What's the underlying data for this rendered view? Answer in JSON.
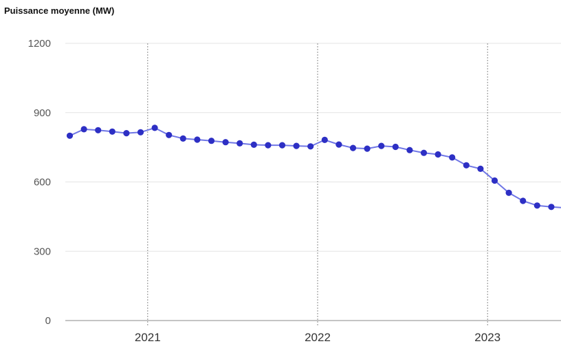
{
  "chart_data": {
    "type": "line",
    "title": "Puissance moyenne (MW)",
    "xlabel": "",
    "ylabel": "",
    "ylim": [
      0,
      1200
    ],
    "yticks": [
      "0",
      "300",
      "600",
      "900",
      "1200"
    ],
    "xticks": [
      "2021",
      "2022",
      "2023"
    ],
    "grid": "horizontal-solid, vertical-dotted-at-years",
    "colors": {
      "series": "#2d2fc4",
      "line": "#6f76e6",
      "grid": "#e3e3e3",
      "year_grid": "#8a8a8a"
    },
    "series": [
      {
        "x": [
          "2020-07",
          "2020-08",
          "2020-09",
          "2020-10",
          "2020-11",
          "2020-12",
          "2021-01",
          "2021-02",
          "2021-03",
          "2021-04",
          "2021-05",
          "2021-06",
          "2021-07",
          "2021-08",
          "2021-09",
          "2021-10",
          "2021-11",
          "2021-12",
          "2022-01",
          "2022-02",
          "2022-03",
          "2022-04",
          "2022-05",
          "2022-06",
          "2022-07",
          "2022-08",
          "2022-09",
          "2022-10",
          "2022-11",
          "2022-12",
          "2023-01",
          "2023-02",
          "2023-03",
          "2023-04",
          "2023-05"
        ],
        "values": [
          800,
          828,
          824,
          818,
          811,
          815,
          834,
          803,
          788,
          783,
          778,
          772,
          767,
          761,
          759,
          759,
          756,
          754,
          782,
          762,
          747,
          744,
          756,
          752,
          738,
          726,
          719,
          706,
          672,
          657,
          606,
          553,
          518,
          498,
          492
        ]
      }
    ]
  }
}
